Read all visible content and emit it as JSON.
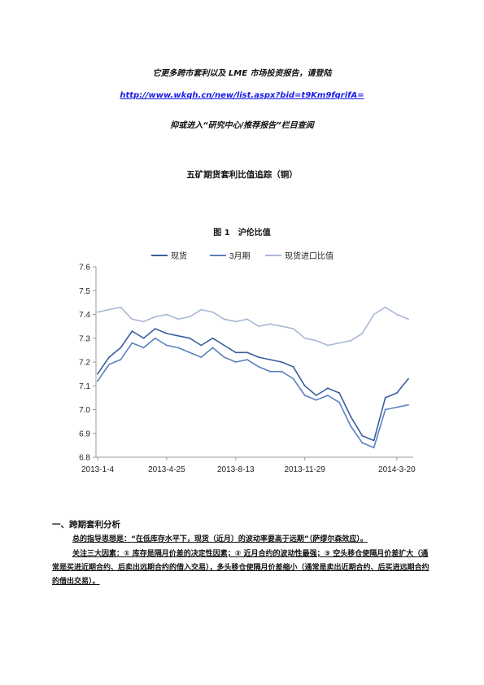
{
  "promo": {
    "line1": "它更多跨市套利以及 LME 市场投资报告，请登陆",
    "link": "http://www.wkqh.cn/new/list.aspx?bid=t9Km9fqrifA=",
    "line3": "抑或进入“研究中心/推荐报告”栏目查阅"
  },
  "doc_title": "五矿期货套利比值追踪（铜）",
  "figure_caption": "图 1　沪伦比值",
  "chart_data": {
    "type": "line",
    "title": "",
    "xlabel": "",
    "ylabel": "",
    "ylim": [
      6.8,
      7.6
    ],
    "yticks": [
      "7.6",
      "7.5",
      "7.4",
      "7.3",
      "7.2",
      "7.1",
      "7.0",
      "6.9",
      "6.8"
    ],
    "xticks": [
      "2013-1-4",
      "2013-4-25",
      "2013-8-13",
      "2013-11-29",
      "2014-3-20"
    ],
    "legend_position": "top",
    "grid": false,
    "x": [
      "2013-1-4",
      "2013-1-24",
      "2013-2-14",
      "2013-3-6",
      "2013-3-26",
      "2013-4-15",
      "2013-4-25",
      "2013-5-10",
      "2013-5-30",
      "2013-6-19",
      "2013-7-9",
      "2013-7-29",
      "2013-8-13",
      "2013-9-2",
      "2013-9-22",
      "2013-10-12",
      "2013-11-1",
      "2013-11-21",
      "2013-11-29",
      "2013-12-19",
      "2014-1-8",
      "2014-1-28",
      "2014-2-10",
      "2014-2-25",
      "2014-3-5",
      "2014-3-12",
      "2014-3-20",
      "2014-3-27"
    ],
    "series": [
      {
        "name": "现货",
        "color": "#3a5f9e",
        "values": [
          7.15,
          7.22,
          7.26,
          7.33,
          7.3,
          7.34,
          7.32,
          7.31,
          7.3,
          7.27,
          7.3,
          7.27,
          7.24,
          7.24,
          7.22,
          7.21,
          7.2,
          7.18,
          7.1,
          7.06,
          7.09,
          7.07,
          6.97,
          6.89,
          6.87,
          7.05,
          7.07,
          7.13
        ]
      },
      {
        "name": "3月期",
        "color": "#5a82bf",
        "values": [
          7.12,
          7.19,
          7.21,
          7.28,
          7.26,
          7.3,
          7.27,
          7.26,
          7.24,
          7.22,
          7.26,
          7.22,
          7.2,
          7.21,
          7.18,
          7.16,
          7.16,
          7.13,
          7.06,
          7.04,
          7.06,
          7.03,
          6.93,
          6.86,
          6.84,
          7.0,
          7.01,
          7.02
        ]
      },
      {
        "name": "现货进口比值",
        "color": "#a9b8d6",
        "values": [
          7.41,
          7.42,
          7.43,
          7.38,
          7.37,
          7.39,
          7.4,
          7.38,
          7.39,
          7.42,
          7.41,
          7.38,
          7.37,
          7.38,
          7.35,
          7.36,
          7.35,
          7.34,
          7.3,
          7.29,
          7.27,
          7.28,
          7.29,
          7.32,
          7.4,
          7.43,
          7.4,
          7.38
        ]
      }
    ]
  },
  "section": {
    "heading": "一、跨期套利分析",
    "para1": "总的指导思想是：“在低库存水平下，现货（近月）的波动率要高于远期”（萨缪尔森效应）。",
    "para2": "关注三大因素：① 库存是隔月价差的决定性因素；② 近月合约的波动性最强；③ 空头移仓使隔月价差扩大（通常是买进近期合约、后卖出远期合约的借入交易），多头移仓使隔月价差缩小（通常是卖出近期合约、后买进远期合约的借出交易）。"
  }
}
